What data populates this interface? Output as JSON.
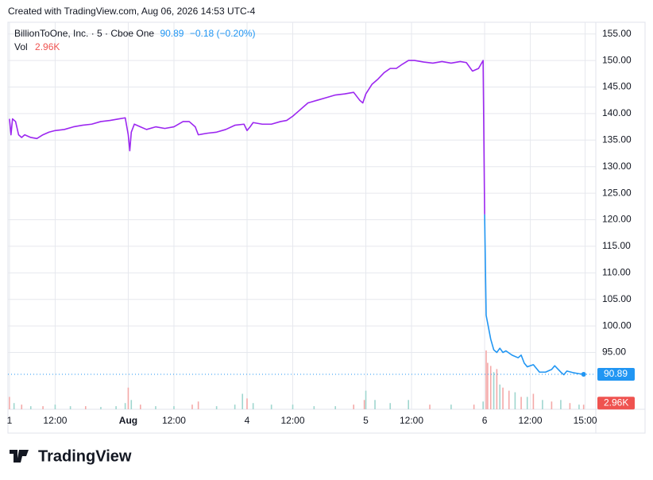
{
  "header": "Created with TradingView.com, Aug 06, 2026 14:53 UTC-4",
  "logo": "TradingView",
  "chart_data": {
    "type": "line",
    "symbol": "BillionToOne, Inc. · 5 · Cboe One",
    "change": "−0.18 (−0.20%)",
    "volume_title": "Vol",
    "xlim": [
      -1,
      385
    ],
    "xticks": [
      {
        "value": 0,
        "label": "1"
      },
      {
        "value": 30,
        "label": "12:00"
      },
      {
        "value": 78,
        "label": "Aug"
      },
      {
        "value": 108,
        "label": "12:00"
      },
      {
        "value": 156,
        "label": "4"
      },
      {
        "value": 186,
        "label": "12:00"
      },
      {
        "value": 234,
        "label": "5"
      },
      {
        "value": 264,
        "label": "12:00"
      },
      {
        "value": 312,
        "label": "6"
      },
      {
        "value": 342,
        "label": "12:00"
      },
      {
        "value": 378,
        "label": "15:00"
      }
    ],
    "ylim": [
      84.3,
      157.2
    ],
    "yticks": [
      {
        "value": 95,
        "label": "95.00"
      },
      {
        "value": 100,
        "label": "100.00"
      },
      {
        "value": 105,
        "label": "105.00"
      },
      {
        "value": 110,
        "label": "110.00"
      },
      {
        "value": 115,
        "label": "115.00"
      },
      {
        "value": 120,
        "label": "120.00"
      },
      {
        "value": 125,
        "label": "125.00"
      },
      {
        "value": 130,
        "label": "130.00"
      },
      {
        "value": 135,
        "label": "135.00"
      },
      {
        "value": 140,
        "label": "140.00"
      },
      {
        "value": 145,
        "label": "145.00"
      },
      {
        "value": 150,
        "label": "150.00"
      },
      {
        "value": 155,
        "label": "155.00"
      }
    ],
    "y2lim": [
      0,
      250
    ],
    "grid": true,
    "series": [
      {
        "color": "#9c27f0",
        "x": [
          0,
          1,
          2,
          4,
          6,
          8,
          10,
          14,
          18,
          22,
          26,
          30,
          36,
          42,
          48,
          54,
          60,
          66,
          72,
          76,
          78,
          79,
          80,
          82,
          86,
          90,
          96,
          102,
          108,
          114,
          118,
          122,
          124,
          130,
          136,
          142,
          148,
          154,
          156,
          158,
          160,
          166,
          172,
          178,
          182,
          186,
          190,
          196,
          202,
          208,
          214,
          220,
          226,
          230,
          232,
          234,
          238,
          242,
          246,
          250,
          254,
          258,
          262,
          266,
          272,
          278,
          284,
          290,
          296,
          300,
          304,
          308,
          311,
          312
        ],
        "values": [
          139,
          136,
          139,
          138.5,
          136,
          135.5,
          136,
          135.5,
          135.3,
          136,
          136.5,
          136.8,
          137,
          137.5,
          137.8,
          138,
          138.5,
          138.7,
          139,
          139.2,
          136,
          133,
          136.5,
          138,
          137.5,
          137,
          137.5,
          137.2,
          137.5,
          138.5,
          138.5,
          137.5,
          136,
          136.3,
          136.5,
          137,
          137.8,
          138,
          136.8,
          137.5,
          138.3,
          138,
          138,
          138.5,
          138.7,
          139.5,
          140.5,
          142,
          142.5,
          143,
          143.5,
          143.7,
          144,
          142.5,
          142,
          143.7,
          145.5,
          146.5,
          147.7,
          148.5,
          148.5,
          149.3,
          150,
          150,
          149.7,
          149.5,
          149.8,
          149.5,
          149.8,
          149.6,
          148,
          148.5,
          150,
          121
        ]
      },
      {
        "color": "#2196f3",
        "x": [
          312,
          313,
          314,
          316,
          318,
          320,
          322,
          324,
          326,
          330,
          334,
          336,
          338,
          340,
          344,
          348,
          352,
          356,
          358,
          362,
          364,
          366,
          370,
          374,
          377
        ],
        "values": [
          121,
          102,
          100.5,
          97.5,
          95.5,
          95,
          95.8,
          95,
          95.3,
          94.5,
          94,
          94.5,
          93,
          92.3,
          92.7,
          91.3,
          91.3,
          91.8,
          92.5,
          91.3,
          90.8,
          91.5,
          91.2,
          91,
          90.89
        ]
      }
    ],
    "volume": {
      "axis": "y2",
      "unit_label": "2.96K",
      "x": [
        0,
        3,
        8,
        14,
        22,
        30,
        40,
        50,
        60,
        70,
        76,
        78,
        80,
        86,
        96,
        108,
        120,
        124,
        136,
        148,
        153,
        156,
        160,
        172,
        186,
        200,
        214,
        226,
        233,
        234,
        240,
        250,
        262,
        276,
        290,
        305,
        311,
        313,
        314,
        316,
        318,
        320,
        322,
        324,
        328,
        332,
        336,
        340,
        344,
        350,
        356,
        362,
        368,
        374,
        377
      ],
      "values": [
        8,
        4,
        3,
        2,
        2,
        3,
        2,
        2,
        1.5,
        2,
        4,
        14,
        6,
        3,
        2,
        2,
        3,
        5,
        2,
        3,
        10,
        7,
        4,
        3,
        3,
        2,
        2,
        3,
        6,
        12,
        6,
        4,
        6,
        3,
        3,
        3,
        5,
        38,
        30,
        28,
        24,
        26,
        16,
        14,
        12,
        11,
        8,
        8,
        10,
        6,
        5,
        6,
        4,
        3,
        2.96
      ],
      "colors": [
        "#f4a9a8",
        "#9fd6cf",
        "#f4a9a8",
        "#9fd6cf",
        "#f4a9a8",
        "#9fd6cf",
        "#9fd6cf",
        "#f4a9a8",
        "#9fd6cf",
        "#9fd6cf",
        "#9fd6cf",
        "#f4a9a8",
        "#9fd6cf",
        "#f4a9a8",
        "#9fd6cf",
        "#9fd6cf",
        "#f4a9a8",
        "#f4a9a8",
        "#9fd6cf",
        "#9fd6cf",
        "#9fd6cf",
        "#f4a9a8",
        "#9fd6cf",
        "#9fd6cf",
        "#9fd6cf",
        "#9fd6cf",
        "#9fd6cf",
        "#f4a9a8",
        "#f4a9a8",
        "#9fd6cf",
        "#9fd6cf",
        "#9fd6cf",
        "#9fd6cf",
        "#f4a9a8",
        "#9fd6cf",
        "#f4a9a8",
        "#9fd6cf",
        "#f4a9a8",
        "#f4a9a8",
        "#f4a9a8",
        "#9fd6cf",
        "#f4a9a8",
        "#9fd6cf",
        "#f4a9a8",
        "#f4a9a8",
        "#9fd6cf",
        "#f4a9a8",
        "#9fd6cf",
        "#f4a9a8",
        "#9fd6cf",
        "#f4a9a8",
        "#9fd6cf",
        "#f4a9a8",
        "#9fd6cf",
        "#f4a9a8"
      ]
    }
  }
}
